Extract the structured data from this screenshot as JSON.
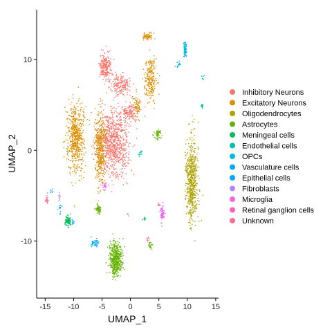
{
  "chart_data": {
    "type": "scatter",
    "xlabel": "UMAP_1",
    "ylabel": "UMAP_2",
    "xlim": [
      -16.5,
      15.5
    ],
    "ylim": [
      -16.3,
      15.5
    ],
    "x_ticks": [
      -15,
      -10,
      -5,
      0,
      5,
      10,
      15
    ],
    "y_ticks": [
      -10,
      0,
      10
    ],
    "grid": false,
    "legend_position": "right",
    "series": [
      {
        "name": "Inhibitory Neurons",
        "color": "#F8766D",
        "clusters": [
          {
            "cx": -3.0,
            "cy": 0.7,
            "sx": 2.4,
            "sy": 3.3,
            "n": 900
          },
          {
            "cx": -4.4,
            "cy": 9.3,
            "sx": 0.9,
            "sy": 1.4,
            "n": 230
          },
          {
            "cx": -1.8,
            "cy": 7.3,
            "sx": 1.5,
            "sy": 1.1,
            "n": 180
          },
          {
            "cx": -0.2,
            "cy": 4.2,
            "sx": 1.5,
            "sy": 0.9,
            "n": 140
          }
        ]
      },
      {
        "name": "Excitatory Neurons",
        "color": "#DB8E00",
        "clusters": [
          {
            "cx": -9.6,
            "cy": 1.4,
            "sx": 1.3,
            "sy": 3.4,
            "n": 600
          },
          {
            "cx": -5.3,
            "cy": 0.2,
            "sx": 0.9,
            "sy": 3.4,
            "n": 420
          },
          {
            "cx": 3.5,
            "cy": 7.8,
            "sx": 1.0,
            "sy": 2.2,
            "n": 240
          },
          {
            "cx": 3.0,
            "cy": 12.6,
            "sx": 0.7,
            "sy": 0.3,
            "n": 60
          },
          {
            "cx": 1.2,
            "cy": 5.0,
            "sx": 0.5,
            "sy": 1.2,
            "n": 70
          }
        ]
      },
      {
        "name": "Oligodendrocytes",
        "color": "#AEA200",
        "clusters": [
          {
            "cx": 10.8,
            "cy": -3.5,
            "sx": 0.9,
            "sy": 4.2,
            "n": 600
          }
        ]
      },
      {
        "name": "Astrocytes",
        "color": "#64B200",
        "clusters": [
          {
            "cx": -2.6,
            "cy": -12.0,
            "sx": 1.0,
            "sy": 1.7,
            "n": 500
          },
          {
            "cx": -5.6,
            "cy": -6.5,
            "sx": 0.4,
            "sy": 0.5,
            "n": 70
          },
          {
            "cx": 4.8,
            "cy": 1.8,
            "sx": 0.5,
            "sy": 0.5,
            "n": 60
          },
          {
            "cx": 3.5,
            "cy": -10.5,
            "sx": 0.3,
            "sy": 0.3,
            "n": 25
          }
        ]
      },
      {
        "name": "Meningeal cells",
        "color": "#00BD5C",
        "clusters": [
          {
            "cx": -11.0,
            "cy": -7.8,
            "sx": 0.5,
            "sy": 0.5,
            "n": 90
          },
          {
            "cx": 2.5,
            "cy": -7.5,
            "sx": 0.3,
            "sy": 0.2,
            "n": 8
          }
        ]
      },
      {
        "name": "Endothelial cells",
        "color": "#00C1A7",
        "clusters": [
          {
            "cx": 12.6,
            "cy": 4.9,
            "sx": 0.3,
            "sy": 0.2,
            "n": 14
          },
          {
            "cx": 1.8,
            "cy": -0.4,
            "sx": 0.4,
            "sy": 0.4,
            "n": 12
          }
        ]
      },
      {
        "name": "OPCs",
        "color": "#00BADE",
        "clusters": [
          {
            "cx": 9.6,
            "cy": 11.0,
            "sx": 0.25,
            "sy": 0.8,
            "n": 70
          },
          {
            "cx": 8.4,
            "cy": 9.5,
            "sx": 0.5,
            "sy": 0.4,
            "n": 18
          },
          {
            "cx": 12.8,
            "cy": 8.0,
            "sx": 0.2,
            "sy": 0.3,
            "n": 6
          }
        ]
      },
      {
        "name": "Vasculature cells",
        "color": "#00A6FF",
        "clusters": [
          {
            "cx": -6.3,
            "cy": -10.2,
            "sx": 0.6,
            "sy": 0.4,
            "n": 45
          },
          {
            "cx": -12.3,
            "cy": -6.5,
            "sx": 0.3,
            "sy": 0.5,
            "n": 12
          },
          {
            "cx": -13.8,
            "cy": -4.5,
            "sx": 0.3,
            "sy": 0.3,
            "n": 6
          }
        ]
      },
      {
        "name": "Epithelial cells",
        "color": "#00A6FF",
        "clusters": [
          {
            "cx": -10.2,
            "cy": -7.9,
            "sx": 0.3,
            "sy": 0.3,
            "n": 10
          }
        ]
      },
      {
        "name": "Fibroblasts",
        "color": "#B385FF",
        "clusters": [
          {
            "cx": -12.5,
            "cy": -5.2,
            "sx": 0.2,
            "sy": 0.4,
            "n": 10
          },
          {
            "cx": -0.5,
            "cy": -7.0,
            "sx": 0.2,
            "sy": 0.2,
            "n": 4
          }
        ]
      },
      {
        "name": "Microglia",
        "color": "#EF67EB",
        "clusters": [
          {
            "cx": 5.6,
            "cy": -6.8,
            "sx": 0.35,
            "sy": 0.8,
            "n": 70
          },
          {
            "cx": -4.5,
            "cy": -4.0,
            "sx": 0.4,
            "sy": 0.4,
            "n": 25
          }
        ]
      },
      {
        "name": "Retinal ganglion cells",
        "color": "#FF63B6",
        "clusters": [
          {
            "cx": 5.0,
            "cy": -6.0,
            "sx": 0.2,
            "sy": 0.3,
            "n": 8
          }
        ]
      },
      {
        "name": "Unknown",
        "color": "#FF6C91",
        "clusters": [
          {
            "cx": -14.7,
            "cy": -5.5,
            "sx": 0.25,
            "sy": 0.4,
            "n": 25
          },
          {
            "cx": 3.0,
            "cy": -9.8,
            "sx": 0.3,
            "sy": 0.3,
            "n": 10
          }
        ]
      }
    ]
  },
  "legend": {
    "items": [
      {
        "label": "Inhibitory Neurons",
        "color": "#F8766D"
      },
      {
        "label": "Excitatory Neurons",
        "color": "#DB8E00"
      },
      {
        "label": "Oligodendrocytes",
        "color": "#AEA200"
      },
      {
        "label": "Astrocytes",
        "color": "#64B200"
      },
      {
        "label": "Meningeal cells",
        "color": "#00BD5C"
      },
      {
        "label": "Endothelial cells",
        "color": "#00C1A7"
      },
      {
        "label": "OPCs",
        "color": "#00BADE"
      },
      {
        "label": "Vasculature cells",
        "color": "#00A6FF"
      },
      {
        "label": "Epithelial cells",
        "color": "#00A6FF"
      },
      {
        "label": "Fibroblasts",
        "color": "#B385FF"
      },
      {
        "label": "Microglia",
        "color": "#EF67EB"
      },
      {
        "label": "Retinal ganglion cells",
        "color": "#FF63B6"
      },
      {
        "label": "Unknown",
        "color": "#FF6C91"
      }
    ]
  }
}
